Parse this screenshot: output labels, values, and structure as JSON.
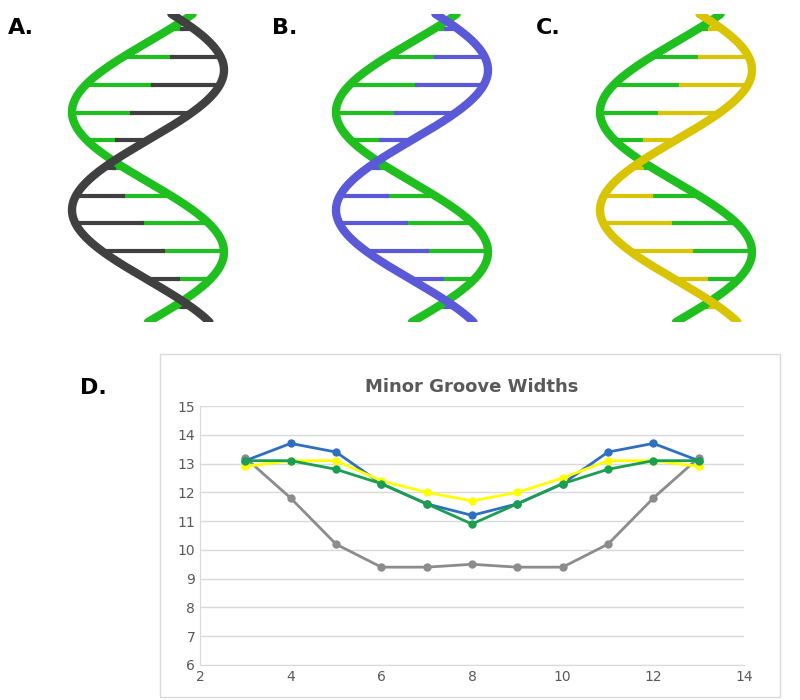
{
  "panel_labels": [
    "A.",
    "B.",
    "C.",
    "D."
  ],
  "chart_data": {
    "type": "line",
    "title": "Minor Groove Widths",
    "x": [
      3,
      4,
      5,
      6,
      7,
      8,
      9,
      10,
      11,
      12,
      13
    ],
    "series": [
      {
        "color": "#8c8c8c",
        "marker": "o",
        "values": [
          13.2,
          11.8,
          10.2,
          9.4,
          9.4,
          9.5,
          9.4,
          9.4,
          10.2,
          11.8,
          13.2
        ]
      },
      {
        "color": "#2f6fc0",
        "marker": "o",
        "values": [
          13.1,
          13.7,
          13.4,
          12.3,
          11.6,
          11.2,
          11.6,
          12.3,
          13.4,
          13.7,
          13.1
        ]
      },
      {
        "color": "#ffff00",
        "marker": "o",
        "values": [
          12.9,
          13.1,
          13.1,
          12.4,
          12.0,
          11.7,
          12.0,
          12.5,
          13.1,
          13.1,
          12.9
        ]
      },
      {
        "color": "#1a9e50",
        "marker": "o",
        "values": [
          13.1,
          13.1,
          12.8,
          12.3,
          11.6,
          10.9,
          11.6,
          12.3,
          12.8,
          13.1,
          13.1
        ]
      }
    ],
    "xlim": [
      2,
      14
    ],
    "xticks": [
      2,
      4,
      6,
      8,
      10,
      12,
      14
    ],
    "ylim": [
      6,
      15
    ],
    "yticks": [
      6,
      7,
      8,
      9,
      10,
      11,
      12,
      13,
      14,
      15
    ],
    "grid": "y"
  }
}
